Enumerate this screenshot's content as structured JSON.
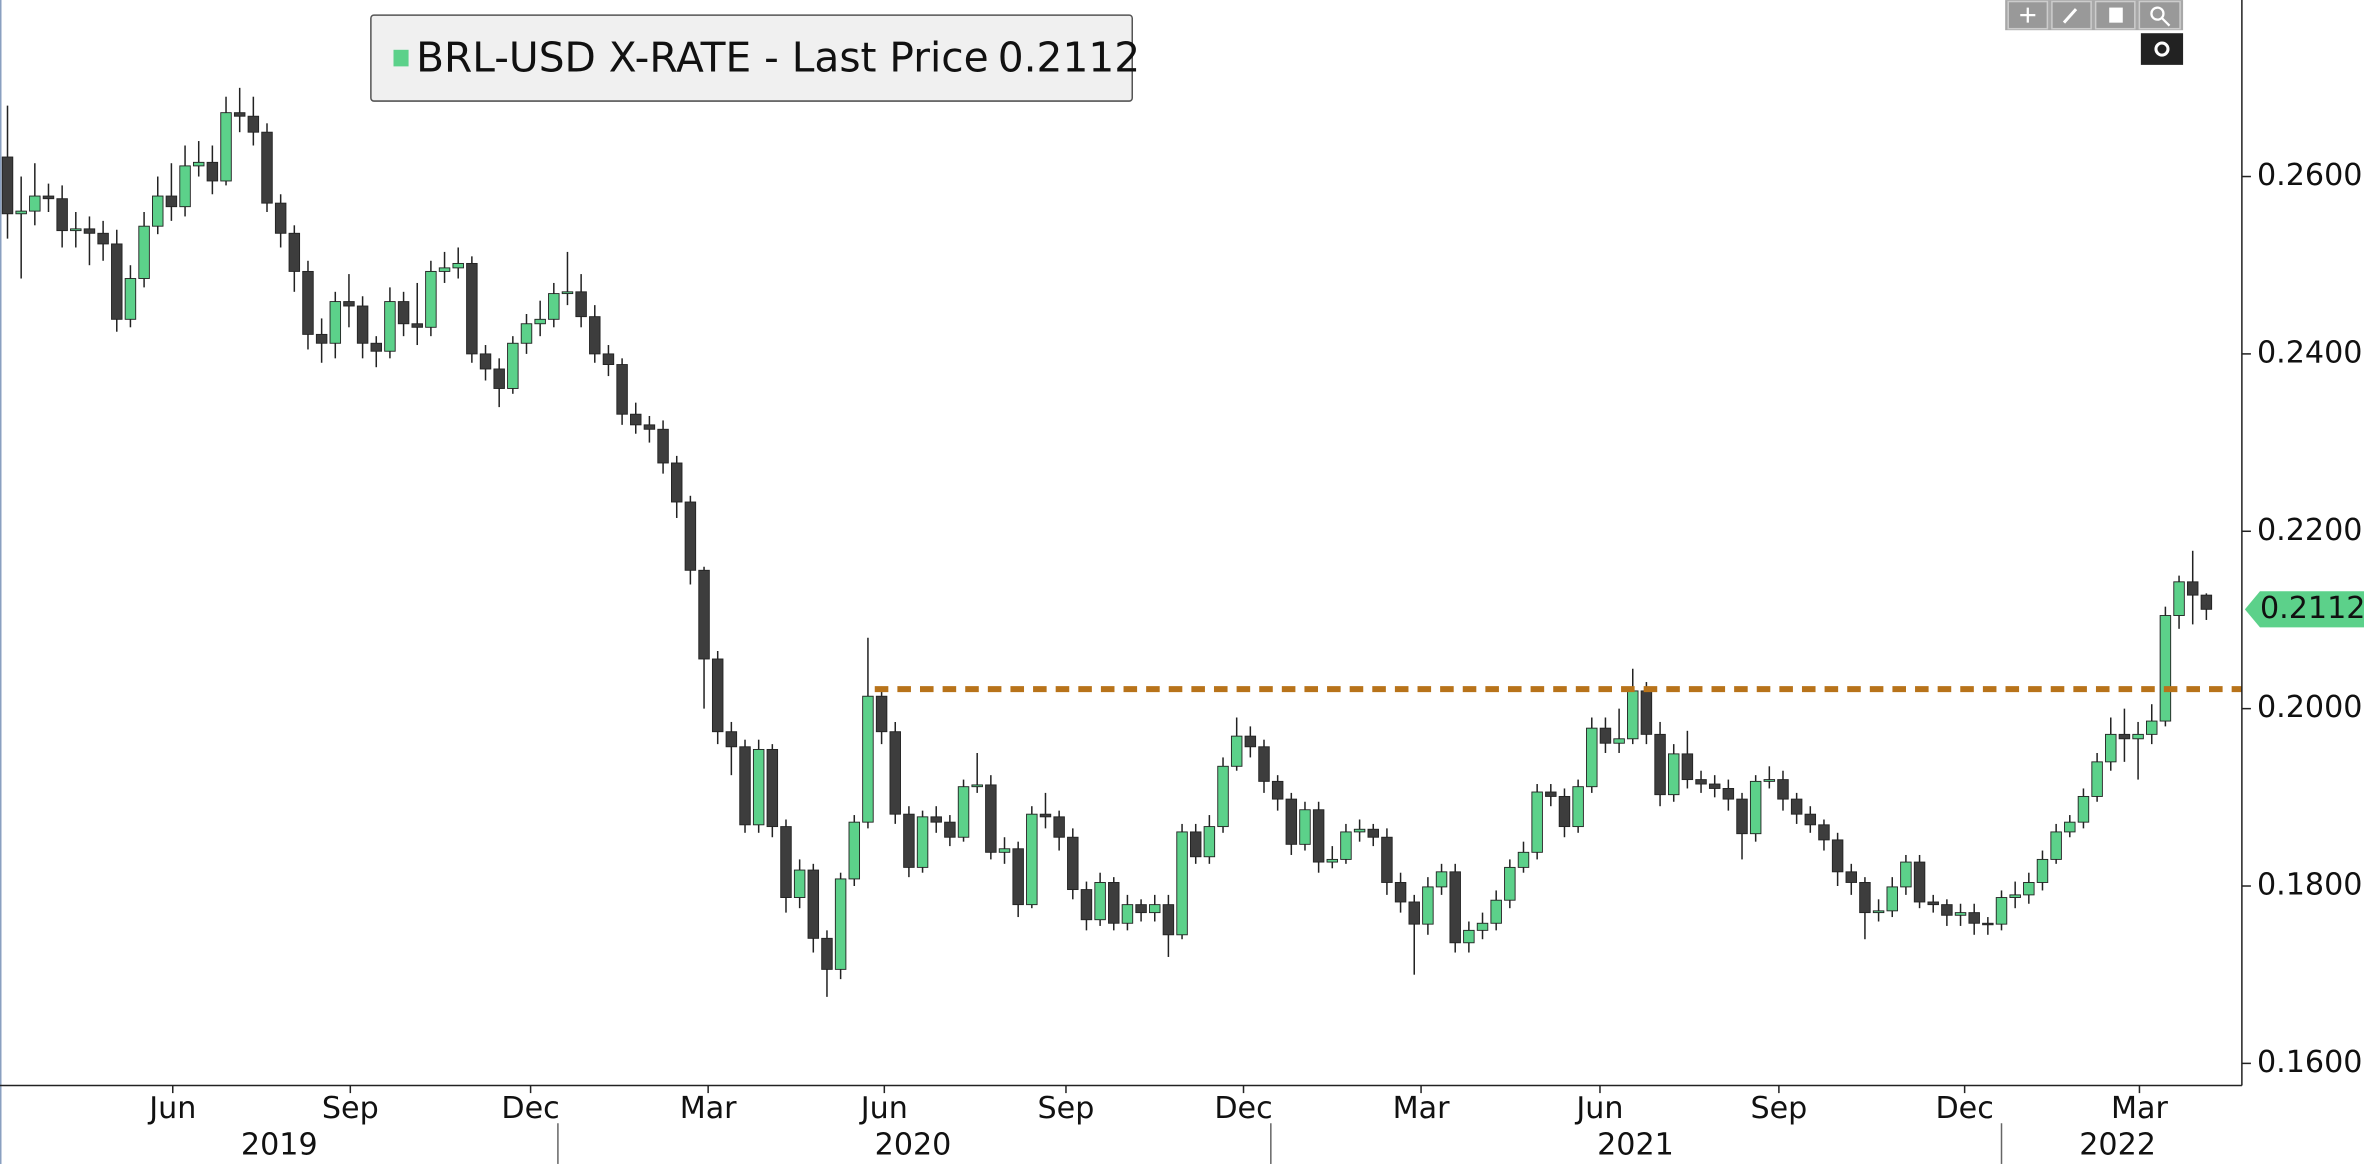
{
  "chart_data": {
    "type": "candlestick",
    "legend_label": "BRL-USD X-RATE - Last Price",
    "last_price": 0.2112,
    "up_color": "#5cd18a",
    "down_color": "#3d3d3d",
    "ylim": [
      0.1575,
      0.2799
    ],
    "yticks": [
      {
        "value": 0.16,
        "label": "0.1600"
      },
      {
        "value": 0.18,
        "label": "0.1800"
      },
      {
        "value": 0.2,
        "label": "0.2000"
      },
      {
        "value": 0.22,
        "label": "0.2200"
      },
      {
        "value": 0.24,
        "label": "0.2400"
      },
      {
        "value": 0.26,
        "label": "0.2600"
      }
    ],
    "xlim": [
      -0.55,
      163.6
    ],
    "xticks": [
      {
        "value": 12.1,
        "label": "Jun"
      },
      {
        "value": 25.1,
        "label": "Sep"
      },
      {
        "value": 38.3,
        "label": "Dec"
      },
      {
        "value": 51.3,
        "label": "Mar"
      },
      {
        "value": 64.2,
        "label": "Jun"
      },
      {
        "value": 77.5,
        "label": "Sep"
      },
      {
        "value": 90.5,
        "label": "Dec"
      },
      {
        "value": 103.5,
        "label": "Mar"
      },
      {
        "value": 116.6,
        "label": "Jun"
      },
      {
        "value": 129.7,
        "label": "Sep"
      },
      {
        "value": 143.3,
        "label": "Dec"
      },
      {
        "value": 156.1,
        "label": "Mar"
      }
    ],
    "year_labels": [
      {
        "value": 19.9,
        "label": "2019"
      },
      {
        "value": 66.3,
        "label": "2020"
      },
      {
        "value": 119.2,
        "label": "2021"
      },
      {
        "value": 154.5,
        "label": "2022"
      }
    ],
    "year_boundaries": [
      40.3,
      92.5,
      146.0
    ],
    "reference_line": {
      "value": 0.2022,
      "x_start": 63.5,
      "color": "#b8731a"
    },
    "open": [
      0.2622,
      0.2558,
      0.2561,
      0.2578,
      0.2575,
      0.2539,
      0.2541,
      0.2536,
      0.2524,
      0.2439,
      0.2485,
      0.2544,
      0.2578,
      0.2566,
      0.2612,
      0.2616,
      0.2595,
      0.2672,
      0.2668,
      0.265,
      0.257,
      0.2536,
      0.2493,
      0.2422,
      0.2412,
      0.2459,
      0.2454,
      0.2412,
      0.2403,
      0.2459,
      0.2434,
      0.243,
      0.2493,
      0.2497,
      0.2502,
      0.24,
      0.2383,
      0.2361,
      0.2412,
      0.2434,
      0.2439,
      0.2468,
      0.247,
      0.2442,
      0.24,
      0.2388,
      0.2332,
      0.232,
      0.2315,
      0.2277,
      0.2233,
      0.2156,
      0.2056,
      0.1974,
      0.1957,
      0.1869,
      0.1954,
      0.1867,
      0.1787,
      0.1818,
      0.1741,
      0.1706,
      0.1808,
      0.1872,
      0.2014,
      0.1974,
      0.1881,
      0.1821,
      0.1878,
      0.1872,
      0.1855,
      0.1912,
      0.1914,
      0.1838,
      0.1842,
      0.1779,
      0.1881,
      0.1878,
      0.1855,
      0.1796,
      0.1762,
      0.1804,
      0.1758,
      0.1779,
      0.177,
      0.1779,
      0.1745,
      0.1861,
      0.1833,
      0.1867,
      0.1935,
      0.1969,
      0.1957,
      0.1918,
      0.1898,
      0.1847,
      0.1886,
      0.1827,
      0.183,
      0.1861,
      0.1864,
      0.1855,
      0.1804,
      0.1782,
      0.1757,
      0.1799,
      0.1816,
      0.1736,
      0.175,
      0.1758,
      0.1784,
      0.1821,
      0.1838,
      0.1906,
      0.1901,
      0.1867,
      0.1912,
      0.1978,
      0.1961,
      0.1966,
      0.202,
      0.1971,
      0.1903,
      0.1949,
      0.192,
      0.1915,
      0.191,
      0.1898,
      0.1859,
      0.1918,
      0.192,
      0.1898,
      0.1881,
      0.1869,
      0.1852,
      0.1816,
      0.1804,
      0.177,
      0.1772,
      0.1799,
      0.1827,
      0.1782,
      0.1779,
      0.1767,
      0.177,
      0.1758,
      0.1757,
      0.1787,
      0.179,
      0.1804,
      0.183,
      0.1861,
      0.1872,
      0.1901,
      0.194,
      0.1971,
      0.1966,
      0.1971,
      0.1986,
      0.2105,
      0.2143,
      0.2128
    ],
    "high": [
      0.268,
      0.26,
      0.2615,
      0.2592,
      0.259,
      0.256,
      0.2555,
      0.255,
      0.254,
      0.25,
      0.256,
      0.26,
      0.2615,
      0.2635,
      0.264,
      0.2635,
      0.269,
      0.27,
      0.269,
      0.266,
      0.258,
      0.2545,
      0.2505,
      0.244,
      0.247,
      0.249,
      0.2465,
      0.242,
      0.2475,
      0.247,
      0.248,
      0.2505,
      0.2515,
      0.252,
      0.251,
      0.241,
      0.2395,
      0.242,
      0.2445,
      0.246,
      0.248,
      0.2515,
      0.249,
      0.2455,
      0.241,
      0.2395,
      0.2345,
      0.233,
      0.2325,
      0.2285,
      0.224,
      0.216,
      0.2065,
      0.1985,
      0.1965,
      0.1965,
      0.196,
      0.1875,
      0.183,
      0.1825,
      0.175,
      0.1815,
      0.188,
      0.208,
      0.2025,
      0.1985,
      0.189,
      0.1885,
      0.189,
      0.188,
      0.192,
      0.195,
      0.1925,
      0.1855,
      0.185,
      0.189,
      0.1905,
      0.1885,
      0.1865,
      0.1805,
      0.1815,
      0.181,
      0.179,
      0.1785,
      0.179,
      0.179,
      0.187,
      0.187,
      0.188,
      0.1945,
      0.199,
      0.198,
      0.1965,
      0.1925,
      0.1905,
      0.1895,
      0.1895,
      0.1845,
      0.187,
      0.1875,
      0.187,
      0.1865,
      0.1815,
      0.179,
      0.181,
      0.1825,
      0.1825,
      0.176,
      0.177,
      0.1795,
      0.183,
      0.185,
      0.1915,
      0.1915,
      0.191,
      0.192,
      0.199,
      0.199,
      0.2,
      0.2045,
      0.203,
      0.1985,
      0.196,
      0.1975,
      0.193,
      0.1925,
      0.192,
      0.1905,
      0.1925,
      0.1935,
      0.193,
      0.1905,
      0.189,
      0.1875,
      0.186,
      0.1825,
      0.181,
      0.1785,
      0.181,
      0.1835,
      0.1835,
      0.179,
      0.1785,
      0.178,
      0.178,
      0.1765,
      0.1795,
      0.1805,
      0.1815,
      0.184,
      0.187,
      0.188,
      0.191,
      0.195,
      0.199,
      0.2,
      0.1985,
      0.2005,
      0.2115,
      0.215,
      0.2178,
      0.213
    ],
    "low": [
      0.253,
      0.2485,
      0.2545,
      0.256,
      0.252,
      0.252,
      0.25,
      0.2505,
      0.2425,
      0.243,
      0.2475,
      0.2535,
      0.255,
      0.2555,
      0.26,
      0.258,
      0.259,
      0.265,
      0.2635,
      0.256,
      0.252,
      0.247,
      0.2405,
      0.239,
      0.2395,
      0.243,
      0.2395,
      0.2385,
      0.2395,
      0.242,
      0.241,
      0.242,
      0.248,
      0.2485,
      0.239,
      0.237,
      0.234,
      0.2355,
      0.24,
      0.242,
      0.243,
      0.2455,
      0.243,
      0.239,
      0.2375,
      0.232,
      0.231,
      0.23,
      0.2265,
      0.2215,
      0.214,
      0.2,
      0.196,
      0.1925,
      0.186,
      0.186,
      0.1855,
      0.177,
      0.1775,
      0.1725,
      0.1675,
      0.1695,
      0.18,
      0.1865,
      0.196,
      0.187,
      0.181,
      0.1815,
      0.186,
      0.1845,
      0.185,
      0.1905,
      0.183,
      0.1825,
      0.1765,
      0.1775,
      0.1865,
      0.184,
      0.1785,
      0.175,
      0.1755,
      0.175,
      0.175,
      0.176,
      0.176,
      0.172,
      0.174,
      0.1825,
      0.1825,
      0.186,
      0.193,
      0.1945,
      0.1905,
      0.1885,
      0.1835,
      0.184,
      0.1815,
      0.182,
      0.1825,
      0.185,
      0.1845,
      0.179,
      0.177,
      0.17,
      0.1745,
      0.179,
      0.1725,
      0.1725,
      0.174,
      0.175,
      0.1775,
      0.1815,
      0.183,
      0.189,
      0.1855,
      0.186,
      0.1905,
      0.195,
      0.195,
      0.196,
      0.196,
      0.189,
      0.1895,
      0.191,
      0.1905,
      0.19,
      0.1885,
      0.183,
      0.185,
      0.191,
      0.1885,
      0.187,
      0.186,
      0.184,
      0.18,
      0.179,
      0.174,
      0.176,
      0.1765,
      0.179,
      0.1775,
      0.177,
      0.1755,
      0.1755,
      0.1745,
      0.1745,
      0.175,
      0.1775,
      0.178,
      0.1795,
      0.1825,
      0.1855,
      0.1865,
      0.1895,
      0.193,
      0.194,
      0.192,
      0.196,
      0.198,
      0.209,
      0.2095,
      0.21
    ],
    "close": [
      0.2558,
      0.2561,
      0.2578,
      0.2575,
      0.2539,
      0.2541,
      0.2536,
      0.2524,
      0.2439,
      0.2485,
      0.2544,
      0.2578,
      0.2566,
      0.2612,
      0.2616,
      0.2595,
      0.2672,
      0.2668,
      0.265,
      0.257,
      0.2536,
      0.2493,
      0.2422,
      0.2412,
      0.2459,
      0.2454,
      0.2412,
      0.2403,
      0.2459,
      0.2434,
      0.243,
      0.2493,
      0.2497,
      0.2502,
      0.24,
      0.2383,
      0.2361,
      0.2412,
      0.2434,
      0.2439,
      0.2468,
      0.247,
      0.2442,
      0.24,
      0.2388,
      0.2332,
      0.232,
      0.2315,
      0.2277,
      0.2233,
      0.2156,
      0.2056,
      0.1974,
      0.1957,
      0.1869,
      0.1954,
      0.1867,
      0.1787,
      0.1818,
      0.1741,
      0.1706,
      0.1808,
      0.1872,
      0.2014,
      0.1974,
      0.1881,
      0.1821,
      0.1878,
      0.1872,
      0.1855,
      0.1912,
      0.1914,
      0.1838,
      0.1842,
      0.1779,
      0.1881,
      0.1878,
      0.1855,
      0.1796,
      0.1762,
      0.1804,
      0.1758,
      0.1779,
      0.177,
      0.1779,
      0.1745,
      0.1861,
      0.1833,
      0.1867,
      0.1935,
      0.1969,
      0.1957,
      0.1918,
      0.1898,
      0.1847,
      0.1886,
      0.1827,
      0.183,
      0.1861,
      0.1864,
      0.1855,
      0.1804,
      0.1782,
      0.1757,
      0.1799,
      0.1816,
      0.1736,
      0.175,
      0.1758,
      0.1784,
      0.1821,
      0.1838,
      0.1906,
      0.1901,
      0.1867,
      0.1912,
      0.1978,
      0.1961,
      0.1966,
      0.202,
      0.1971,
      0.1903,
      0.1949,
      0.192,
      0.1915,
      0.191,
      0.1898,
      0.1859,
      0.1918,
      0.192,
      0.1898,
      0.1881,
      0.1869,
      0.1852,
      0.1816,
      0.1804,
      0.177,
      0.1772,
      0.1799,
      0.1827,
      0.1782,
      0.1779,
      0.1767,
      0.177,
      0.1758,
      0.1757,
      0.1787,
      0.179,
      0.1804,
      0.183,
      0.1861,
      0.1872,
      0.1901,
      0.194,
      0.1971,
      0.1966,
      0.1971,
      0.1986,
      0.2105,
      0.2143,
      0.2128,
      0.2112
    ]
  }
}
